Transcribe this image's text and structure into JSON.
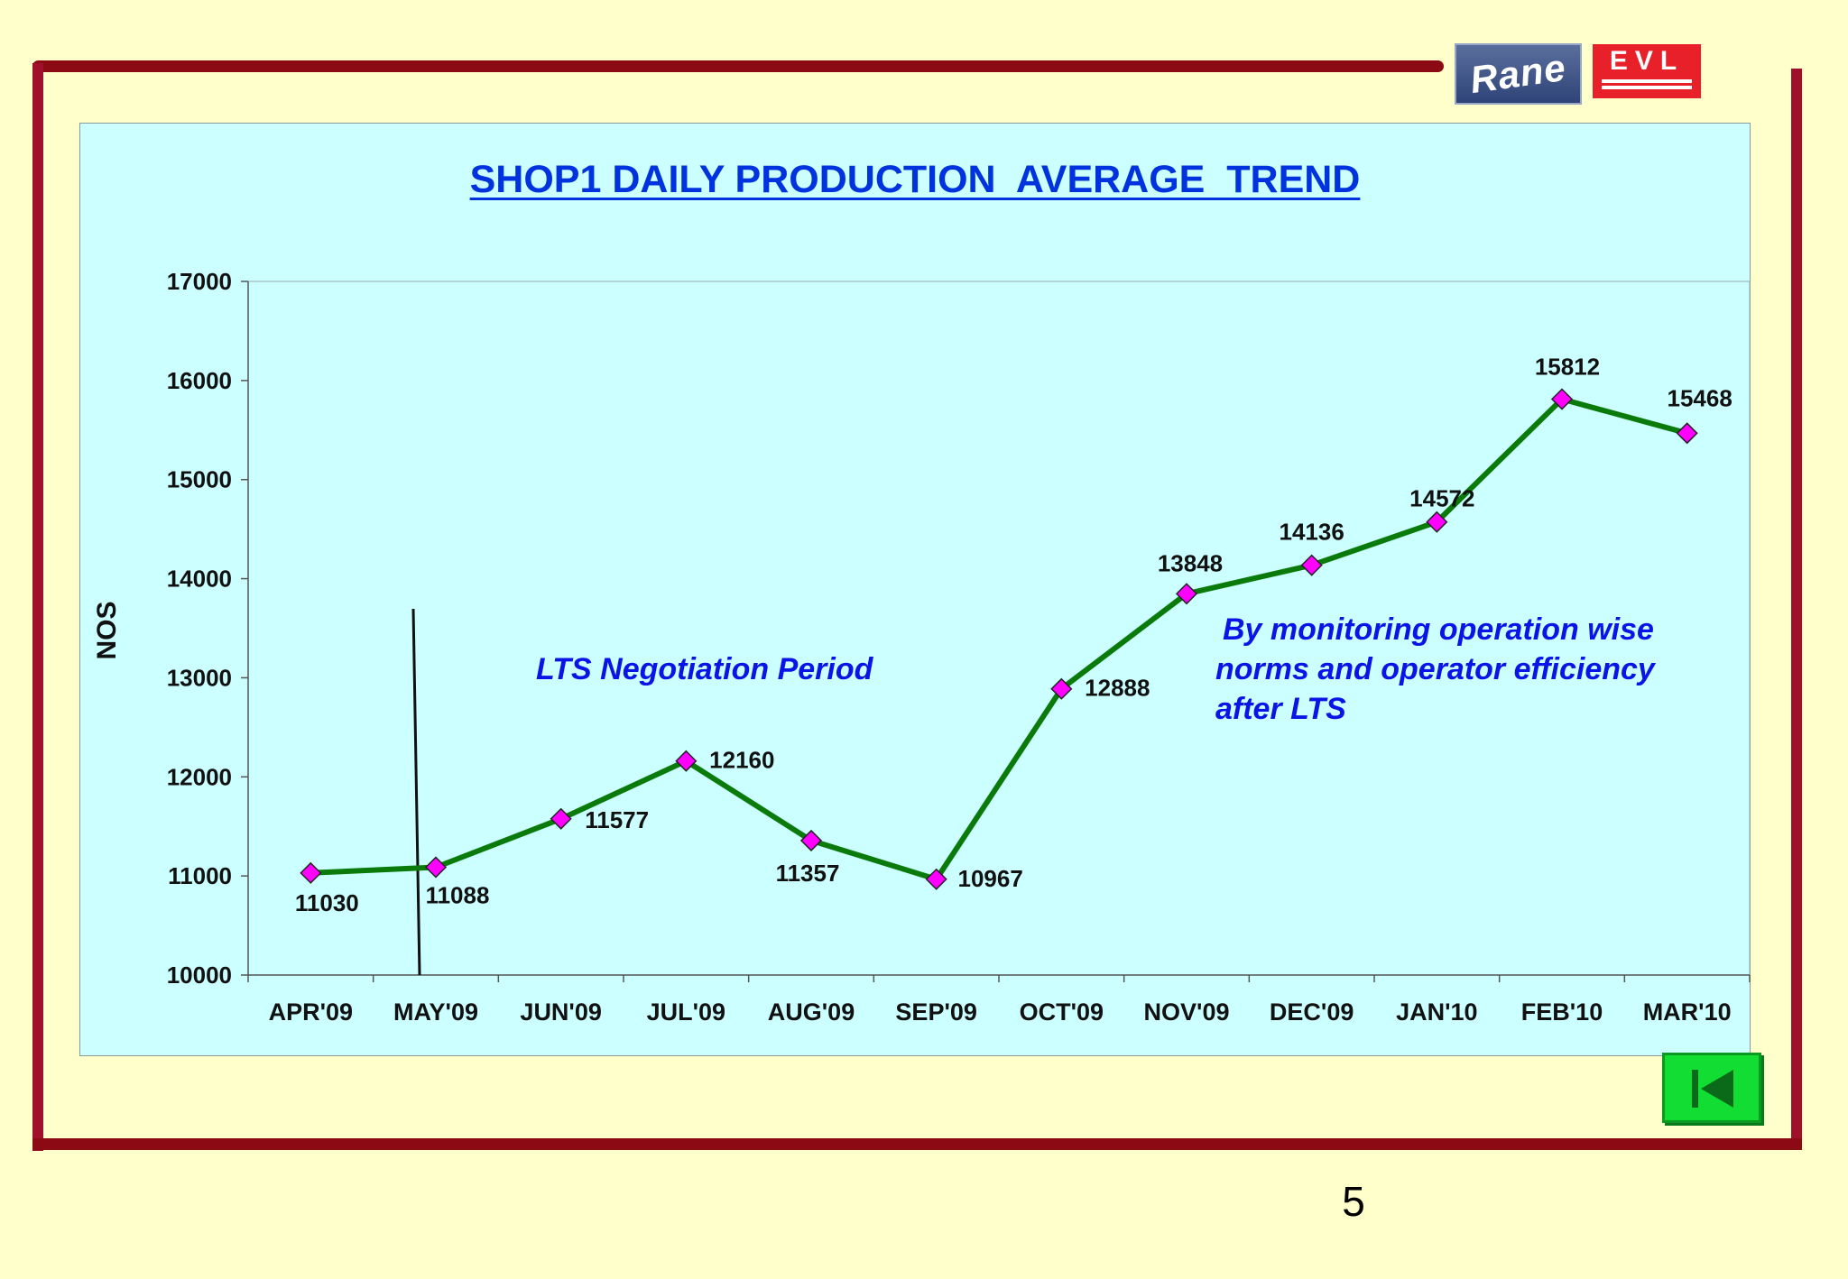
{
  "logos": {
    "rane": "Rane",
    "evl": "EVL"
  },
  "page_number": "5",
  "chart_data": {
    "type": "line",
    "title": "SHOP1 DAILY PRODUCTION  AVERAGE  TREND",
    "ylabel": "NOS",
    "xlabel": "",
    "categories": [
      "APR'09",
      "MAY'09",
      "JUN'09",
      "JUL'09",
      "AUG'09",
      "SEP'09",
      "OCT'09",
      "NOV'09",
      "DEC'09",
      "JAN'10",
      "FEB'10",
      "MAR'10"
    ],
    "series": [
      {
        "values": [
          11030,
          11088,
          11577,
          12160,
          11357,
          10967,
          12888,
          13848,
          14136,
          14572,
          15812,
          15468
        ],
        "line_color": "#0a7a0a",
        "marker_color": "#ff00ff"
      }
    ],
    "ylim": [
      10000,
      17000
    ],
    "yticks": [
      10000,
      11000,
      12000,
      13000,
      14000,
      15000,
      16000,
      17000
    ],
    "grid": false,
    "legend": "none",
    "annotations": [
      {
        "text": "LTS Negotiation Period"
      },
      {
        "lines": [
          "By monitoring operation wise",
          "norms and operator efficiency",
          "after LTS"
        ]
      }
    ],
    "annotation_color": "#0a14e6"
  }
}
